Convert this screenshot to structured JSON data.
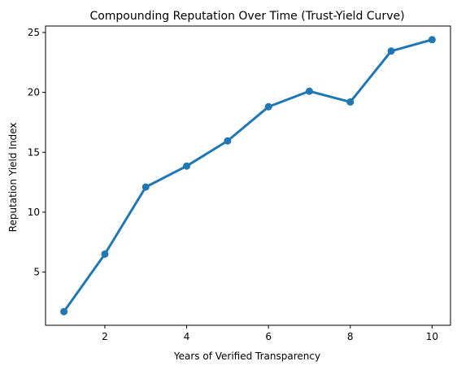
{
  "chart_data": {
    "type": "line",
    "title": "Compounding Reputation Over Time (Trust-Yield Curve)",
    "xlabel": "Years of Verified Transparency",
    "ylabel": "Reputation Yield Index",
    "x": [
      1,
      2,
      3,
      4,
      5,
      6,
      7,
      8,
      9,
      10
    ],
    "series": [
      {
        "values": [
          1.7,
          6.5,
          12.1,
          13.85,
          15.95,
          18.8,
          20.1,
          19.2,
          23.45,
          24.4
        ],
        "color": "#1f77b4"
      }
    ],
    "xticks": [
      2,
      4,
      6,
      8,
      10
    ],
    "yticks": [
      5,
      10,
      15,
      20,
      25
    ],
    "xlim": [
      0.55,
      10.45
    ],
    "ylim": [
      0.56,
      25.54
    ],
    "grid": false,
    "legend": "none"
  }
}
